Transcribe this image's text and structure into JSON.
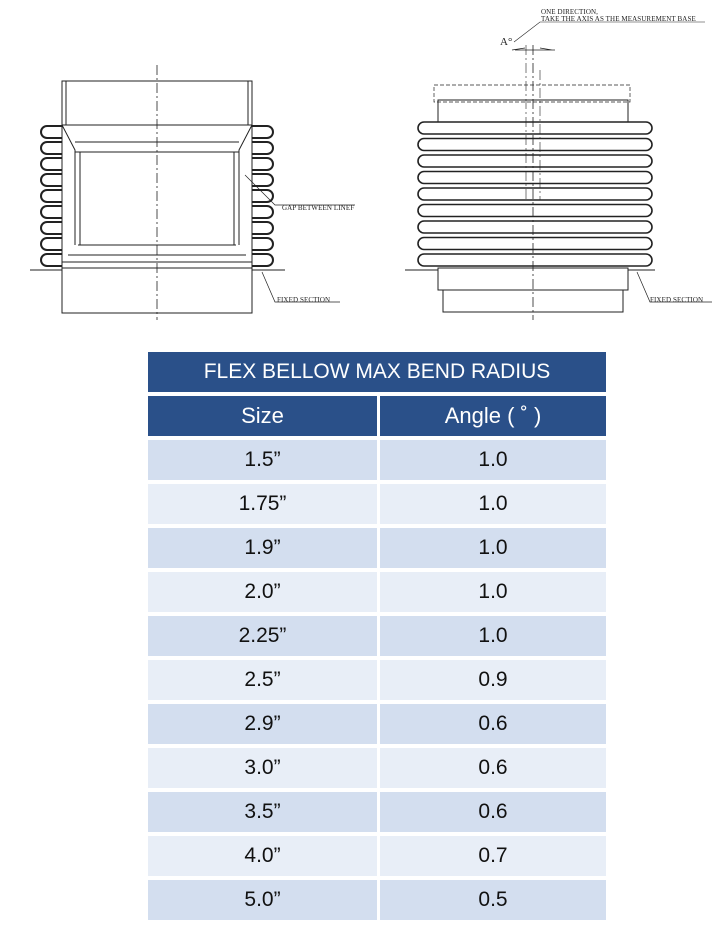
{
  "drawings": {
    "left": {
      "gap_label": "GAP BETWEEN LINEF",
      "fixed_label": "FIXED SECTION"
    },
    "right": {
      "note_line1": "ONE DIRECTION,",
      "note_line2": "TAKE THE AXIS AS THE MEASUREMENT BASE",
      "angle_label": "A°",
      "fixed_label": "FIXED SECTION"
    }
  },
  "table": {
    "title": "FLEX BELLOW MAX BEND RADIUS",
    "headers": [
      "Size",
      "Angle (  ˚ )"
    ],
    "rows": [
      [
        "1.5”",
        "1.0"
      ],
      [
        "1.75”",
        "1.0"
      ],
      [
        "1.9”",
        "1.0"
      ],
      [
        "2.0”",
        "1.0"
      ],
      [
        "2.25”",
        "1.0"
      ],
      [
        "2.5”",
        "0.9"
      ],
      [
        "2.9”",
        "0.6"
      ],
      [
        "3.0”",
        "0.6"
      ],
      [
        "3.5”",
        "0.6"
      ],
      [
        "4.0”",
        "0.7"
      ],
      [
        "5.0”",
        "0.5"
      ]
    ],
    "colors": {
      "header": "#2a5089",
      "row_dark": "#d3deef",
      "row_light": "#e8eef7"
    }
  }
}
